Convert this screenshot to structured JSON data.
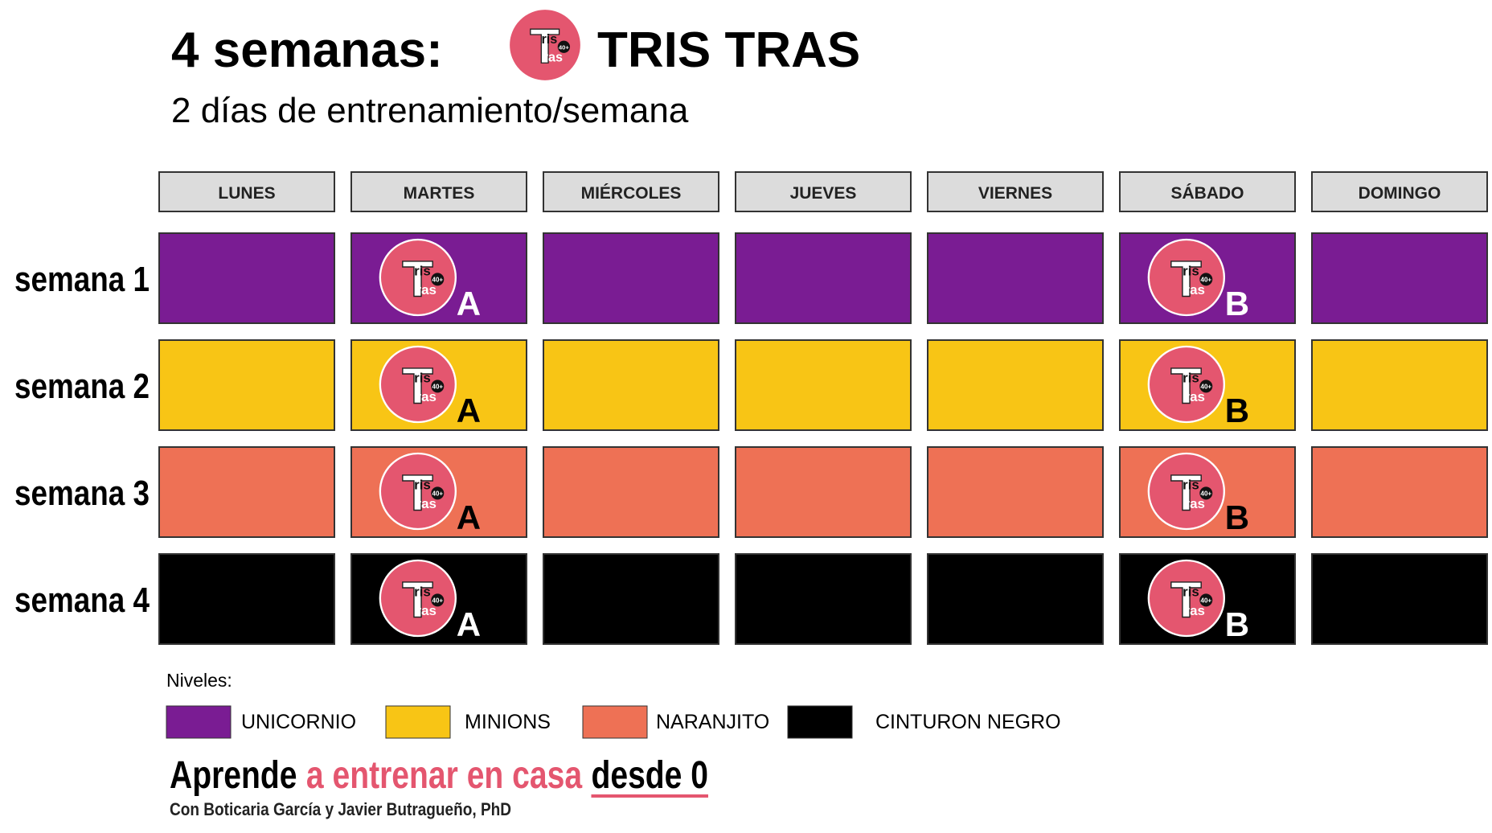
{
  "header": {
    "title_prefix": "4 semanas:",
    "title_brand": "TRIS TRAS",
    "subtitle": "2 días de entrenamiento/semana"
  },
  "logo": {
    "letter": "T",
    "top": "ris",
    "bottom": "ras",
    "badge": "40+"
  },
  "days": [
    "LUNES",
    "MARTES",
    "MIÉRCOLES",
    "JUEVES",
    "VIERNES",
    "SÁBADO",
    "DOMINGO"
  ],
  "weeks": [
    {
      "label": "semana 1",
      "cells": [
        null,
        "A",
        null,
        null,
        null,
        "B",
        null
      ]
    },
    {
      "label": "semana 2",
      "cells": [
        null,
        "A",
        null,
        null,
        null,
        "B",
        null
      ]
    },
    {
      "label": "semana 3",
      "cells": [
        null,
        "A",
        null,
        null,
        null,
        "B",
        null
      ]
    },
    {
      "label": "semana 4",
      "cells": [
        null,
        "A",
        null,
        null,
        null,
        "B",
        null
      ]
    }
  ],
  "legend": {
    "title": "Niveles:",
    "levels": [
      {
        "name": "UNICORNIO",
        "color": "#7a1c93",
        "letter_color": "#ffffff"
      },
      {
        "name": "MINIONS",
        "color": "#f8c515",
        "letter_color": "#000000"
      },
      {
        "name": "NARANJITO",
        "color": "#ee7155",
        "letter_color": "#000000"
      },
      {
        "name": "CINTURON NEGRO",
        "color": "#000000",
        "letter_color": "#ffffff"
      }
    ]
  },
  "footer": {
    "part1": "Aprende",
    "part2": "a entrenar en casa",
    "part3": "desde 0",
    "credits": "Con Boticaria García y Javier Butragueño, PhD"
  }
}
